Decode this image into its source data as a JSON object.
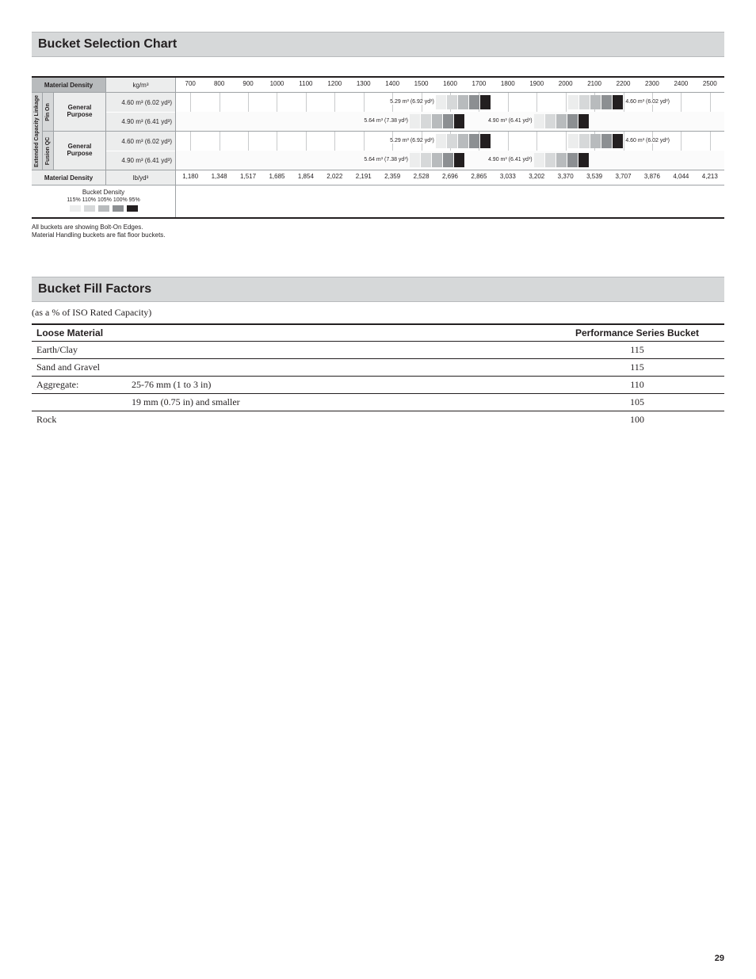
{
  "page_number": "29",
  "selection": {
    "title": "Bucket Selection Chart",
    "header": {
      "material_density": "Material Density",
      "unit_top": "kg/m³",
      "unit_bottom": "lb/yd³"
    },
    "scale": {
      "min": 650,
      "max": 2550,
      "ticks_kg": [
        700,
        800,
        900,
        1000,
        1100,
        1200,
        1300,
        1400,
        1500,
        1600,
        1700,
        1800,
        1900,
        2000,
        2100,
        2200,
        2300,
        2400,
        2500
      ],
      "ticks_lb": [
        1180,
        1348,
        1517,
        1685,
        1854,
        2022,
        2191,
        2359,
        2528,
        2696,
        2865,
        3033,
        3202,
        3370,
        3539,
        3707,
        3876,
        4044,
        4213
      ]
    },
    "group_label_outer": "Extended Capacity Linkage",
    "sections": [
      {
        "attach_label": "Pin On",
        "purpose_label": "General\nPurpose",
        "rows": [
          {
            "capacity": "4.60 m³ (6.02 yd³)",
            "bars": [
              {
                "start": 1550,
                "label": "5.29 m³ (6.92 yd³)",
                "label_side": "left"
              },
              {
                "start": 2010,
                "label": "4.60 m³ (6.02 yd³)",
                "label_side": "right",
                "right_anchor": true
              }
            ]
          },
          {
            "capacity": "4.90 m³ (6.41 yd³)",
            "bars": [
              {
                "start": 1460,
                "label": "5.64 m³ (7.38 yd³)",
                "label_side": "left"
              },
              {
                "start": 1890,
                "label": "4.90 m³ (6.41 yd³)",
                "label_side": "left"
              }
            ]
          }
        ]
      },
      {
        "attach_label": "Fusion QC",
        "purpose_label": "General\nPurpose",
        "rows": [
          {
            "capacity": "4.60 m³ (6.02 yd³)",
            "bars": [
              {
                "start": 1550,
                "label": "5.29 m³ (6.92 yd³)",
                "label_side": "left"
              },
              {
                "start": 2010,
                "label": "4.60 m³ (6.02 yd³)",
                "label_side": "right",
                "right_anchor": true
              }
            ]
          },
          {
            "capacity": "4.90 m³ (6.41 yd³)",
            "bars": [
              {
                "start": 1460,
                "label": "5.64 m³ (7.38 yd³)",
                "label_side": "left"
              },
              {
                "start": 1890,
                "label": "4.90 m³ (6.41 yd³)",
                "label_side": "left"
              }
            ]
          }
        ]
      }
    ],
    "density_swatches": {
      "title": "Bucket Density",
      "labels": [
        "115%",
        "110%",
        "105%",
        "100%",
        "95%"
      ],
      "colors": [
        "#eceded",
        "#d6d8d9",
        "#b8bbbd",
        "#8c8f92",
        "#231f20"
      ]
    },
    "bar_step": 60,
    "bar_seg_width": 14,
    "notes": [
      "All buckets are showing Bolt-On Edges.",
      "Material Handling buckets are flat floor buckets."
    ]
  },
  "fill_factors": {
    "title": "Bucket Fill Factors",
    "subtitle": "(as a % of ISO Rated Capacity)",
    "columns": {
      "material": "Loose Material",
      "bucket": "Performance Series Bucket"
    },
    "rows": [
      {
        "material": "Earth/Clay",
        "detail": "",
        "value": "115"
      },
      {
        "material": "Sand and Gravel",
        "detail": "",
        "value": "115"
      },
      {
        "material": "Aggregate:",
        "detail": "25-76 mm (1 to 3 in)",
        "value": "110"
      },
      {
        "material": "",
        "detail": "19 mm (0.75 in) and smaller",
        "value": "105"
      },
      {
        "material": "Rock",
        "detail": "",
        "value": "100",
        "noborder": true
      }
    ]
  }
}
